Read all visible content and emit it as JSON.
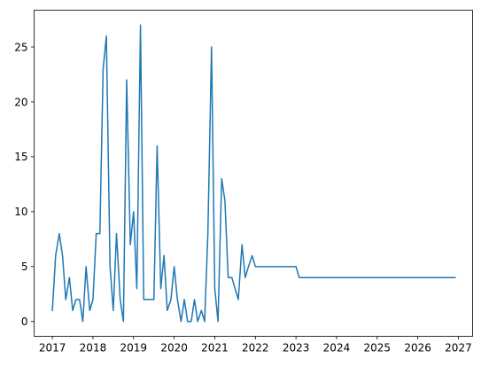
{
  "chart_data": {
    "type": "line",
    "title": "",
    "xlabel": "",
    "ylabel": "",
    "grid": false,
    "legend": "none",
    "xlim": [
      2016.55,
      2027.35
    ],
    "ylim": [
      -1.35,
      28.35
    ],
    "xticks": [
      2017,
      2018,
      2019,
      2020,
      2021,
      2022,
      2023,
      2024,
      2025,
      2026,
      2027
    ],
    "xtick_labels": [
      "2017",
      "2018",
      "2019",
      "2020",
      "2021",
      "2022",
      "2023",
      "2024",
      "2025",
      "2026",
      "2027"
    ],
    "yticks": [
      0,
      5,
      10,
      15,
      20,
      25
    ],
    "ytick_labels": [
      "0",
      "5",
      "10",
      "15",
      "20",
      "25"
    ],
    "series": [
      {
        "color": "#1f77b4",
        "x": [
          2017.0,
          2017.08,
          2017.17,
          2017.25,
          2017.33,
          2017.42,
          2017.5,
          2017.58,
          2017.67,
          2017.75,
          2017.83,
          2017.92,
          2018.0,
          2018.08,
          2018.17,
          2018.25,
          2018.33,
          2018.42,
          2018.5,
          2018.58,
          2018.67,
          2018.75,
          2018.83,
          2018.92,
          2019.0,
          2019.08,
          2019.17,
          2019.25,
          2019.33,
          2019.42,
          2019.5,
          2019.58,
          2019.67,
          2019.75,
          2019.83,
          2019.92,
          2020.0,
          2020.08,
          2020.17,
          2020.25,
          2020.33,
          2020.42,
          2020.5,
          2020.58,
          2020.67,
          2020.75,
          2020.83,
          2020.92,
          2021.0,
          2021.08,
          2021.17,
          2021.25,
          2021.33,
          2021.42,
          2021.5,
          2021.58,
          2021.67,
          2021.75,
          2021.83,
          2021.92,
          2022.0,
          2023.0,
          2023.08,
          2026.92
        ],
        "y": [
          1,
          6,
          8,
          6,
          2,
          4,
          1,
          2,
          2,
          0,
          5,
          1,
          2,
          8,
          8,
          23,
          26,
          5,
          1,
          8,
          2,
          0,
          22,
          7,
          10,
          3,
          27,
          2,
          2,
          2,
          2,
          16,
          3,
          6,
          1,
          2,
          5,
          2,
          0,
          2,
          0,
          0,
          2,
          0,
          1,
          0,
          8,
          25,
          3,
          0,
          13,
          11,
          4,
          4,
          3,
          2,
          7,
          4,
          5,
          6,
          5,
          5,
          4,
          4
        ]
      }
    ]
  }
}
